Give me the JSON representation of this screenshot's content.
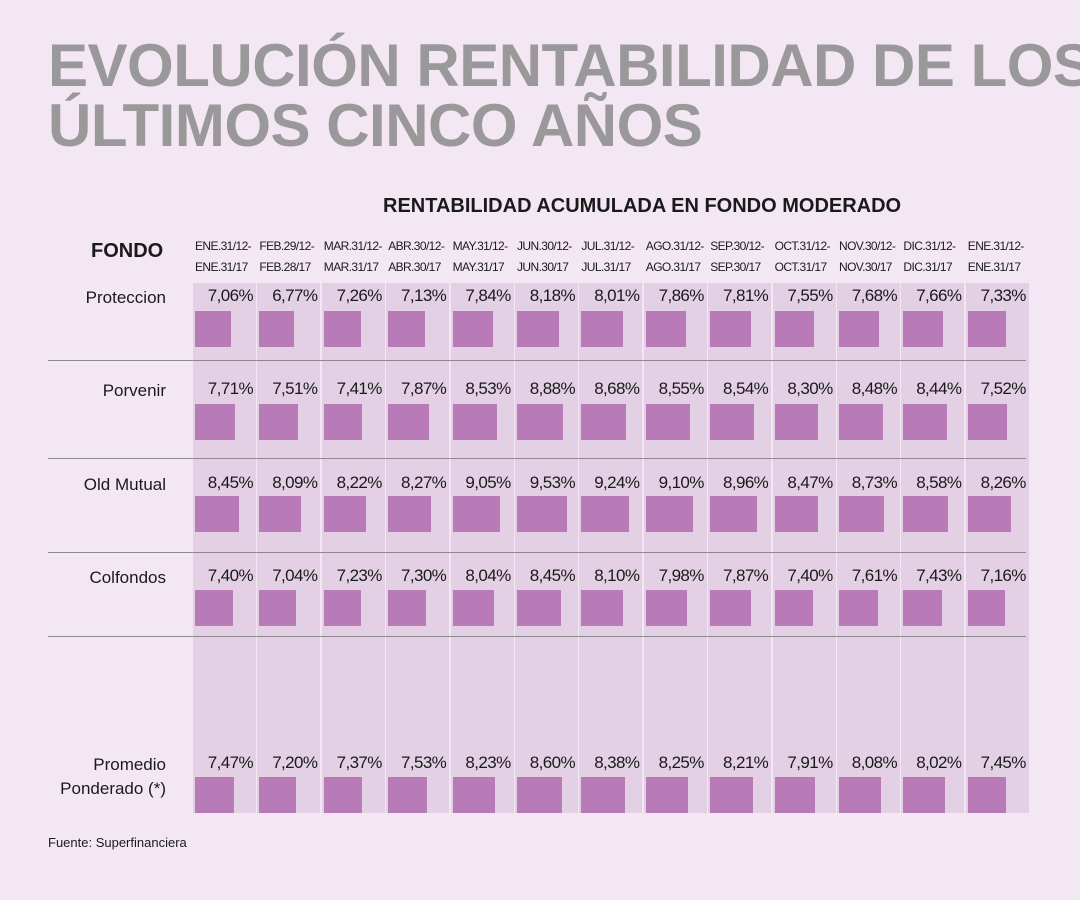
{
  "title_lines": [
    "EVOLUCIÓN RENTABILIDAD DE LOS",
    "ÚLTIMOS CINCO AÑOS"
  ],
  "colors": {
    "background": "#f3e7f4",
    "column_stripe": "#e3d0e5",
    "bar": "#b97ab8",
    "title": "#9a989a"
  },
  "chart_data": {
    "type": "table",
    "title": "EVOLUCIÓN RENTABILIDAD DE LOS ÚLTIMOS CINCO AÑOS",
    "subtitle": "RENTABILIDAD ACUMULADA EN FONDO MODERADO",
    "row_header": "FONDO",
    "columns": [
      [
        "ENE.31/12-",
        "ENE.31/17"
      ],
      [
        "FEB.29/12-",
        "FEB.28/17"
      ],
      [
        "MAR.31/12-",
        "MAR.31/17"
      ],
      [
        "ABR.30/12-",
        "ABR.30/17"
      ],
      [
        "MAY.31/12-",
        "MAY.31/17"
      ],
      [
        "JUN.30/12-",
        "JUN.30/17"
      ],
      [
        "JUL.31/12-",
        "JUL.31/17"
      ],
      [
        "AGO.31/12-",
        "AGO.31/17"
      ],
      [
        "SEP.30/12-",
        "SEP.30/17"
      ],
      [
        "OCT.31/12-",
        "OCT.31/17"
      ],
      [
        "NOV.30/12-",
        "NOV.30/17"
      ],
      [
        "DIC.31/12-",
        "DIC.31/17"
      ],
      [
        "ENE.31/12-",
        "ENE.31/17"
      ]
    ],
    "rows": [
      {
        "label": [
          "Proteccion"
        ],
        "labels_text": [
          "7,06%",
          "6,77%",
          "7,26%",
          "7,13%",
          "7,84%",
          "8,18%",
          "8,01%",
          "7,86%",
          "7,81%",
          "7,55%",
          "7,68%",
          "7,66%",
          "7,33%"
        ],
        "values": [
          7.06,
          6.77,
          7.26,
          7.13,
          7.84,
          8.18,
          8.01,
          7.86,
          7.81,
          7.55,
          7.68,
          7.66,
          7.33
        ]
      },
      {
        "label": [
          "Porvenir"
        ],
        "labels_text": [
          "7,71%",
          "7,51%",
          "7,41%",
          "7,87%",
          "8,53%",
          "8,88%",
          "8,68%",
          "8,55%",
          "8,54%",
          "8,30%",
          "8,48%",
          "8,44%",
          "7,52%"
        ],
        "values": [
          7.71,
          7.51,
          7.41,
          7.87,
          8.53,
          8.88,
          8.68,
          8.55,
          8.54,
          8.3,
          8.48,
          8.44,
          7.52
        ]
      },
      {
        "label": [
          "Old Mutual"
        ],
        "labels_text": [
          "8,45%",
          "8,09%",
          "8,22%",
          "8,27%",
          "9,05%",
          "9,53%",
          "9,24%",
          "9,10%",
          "8,96%",
          "8,47%",
          "8,73%",
          "8,58%",
          "8,26%"
        ],
        "values": [
          8.45,
          8.09,
          8.22,
          8.27,
          9.05,
          9.53,
          9.24,
          9.1,
          8.96,
          8.47,
          8.73,
          8.58,
          8.26
        ]
      },
      {
        "label": [
          "Colfondos"
        ],
        "labels_text": [
          "7,40%",
          "7,04%",
          "7,23%",
          "7,30%",
          "8,04%",
          "8,45%",
          "8,10%",
          "7,98%",
          "7,87%",
          "7,40%",
          "7,61%",
          "7,43%",
          "7,16%"
        ],
        "values": [
          7.4,
          7.04,
          7.23,
          7.3,
          8.04,
          8.45,
          8.1,
          7.98,
          7.87,
          7.4,
          7.61,
          7.43,
          7.16
        ]
      },
      {
        "label": [
          "Promedio",
          "Ponderado (*)"
        ],
        "labels_text": [
          "7,47%",
          "7,20%",
          "7,37%",
          "7,53%",
          "8,23%",
          "8,60%",
          "8,38%",
          "8,25%",
          "8,21%",
          "7,91%",
          "8,08%",
          "8,02%",
          "7,45%"
        ],
        "values": [
          7.47,
          7.2,
          7.37,
          7.53,
          8.23,
          8.6,
          8.38,
          8.25,
          8.21,
          7.91,
          8.08,
          8.02,
          7.45
        ]
      }
    ],
    "source": "Fuente: Superfinanciera"
  }
}
